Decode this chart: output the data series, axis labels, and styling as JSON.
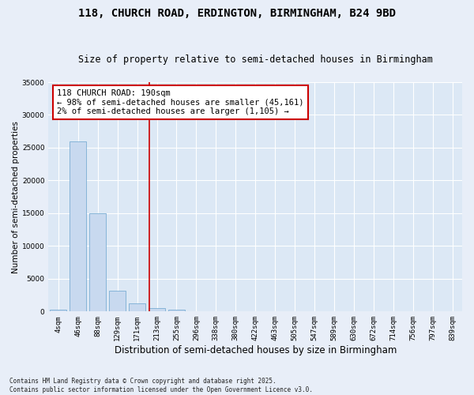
{
  "title": "118, CHURCH ROAD, ERDINGTON, BIRMINGHAM, B24 9BD",
  "subtitle": "Size of property relative to semi-detached houses in Birmingham",
  "xlabel": "Distribution of semi-detached houses by size in Birmingham",
  "ylabel": "Number of semi-detached properties",
  "footnote": "Contains HM Land Registry data © Crown copyright and database right 2025.\nContains public sector information licensed under the Open Government Licence v3.0.",
  "bin_labels": [
    "4sqm",
    "46sqm",
    "88sqm",
    "129sqm",
    "171sqm",
    "213sqm",
    "255sqm",
    "296sqm",
    "338sqm",
    "380sqm",
    "422sqm",
    "463sqm",
    "505sqm",
    "547sqm",
    "589sqm",
    "630sqm",
    "672sqm",
    "714sqm",
    "756sqm",
    "797sqm",
    "839sqm"
  ],
  "bar_values": [
    300,
    26000,
    15000,
    3200,
    1200,
    500,
    250,
    100,
    0,
    0,
    0,
    0,
    0,
    0,
    0,
    0,
    0,
    0,
    0,
    0,
    0
  ],
  "bar_color": "#c8d9ef",
  "bar_edge_color": "#7aadd4",
  "vline_x_index": 4.62,
  "vline_color": "#cc0000",
  "annotation_title": "118 CHURCH ROAD: 190sqm",
  "annotation_line2": "← 98% of semi-detached houses are smaller (45,161)",
  "annotation_line3": "2% of semi-detached houses are larger (1,105) →",
  "ylim": [
    0,
    35000
  ],
  "yticks": [
    0,
    5000,
    10000,
    15000,
    20000,
    25000,
    30000,
    35000
  ],
  "background_color": "#e8eef8",
  "plot_background": "#dce8f5",
  "title_fontsize": 10,
  "subtitle_fontsize": 8.5,
  "tick_fontsize": 6.5,
  "ylabel_fontsize": 7.5,
  "xlabel_fontsize": 8.5,
  "annotation_fontsize": 7.5,
  "footnote_fontsize": 5.5
}
